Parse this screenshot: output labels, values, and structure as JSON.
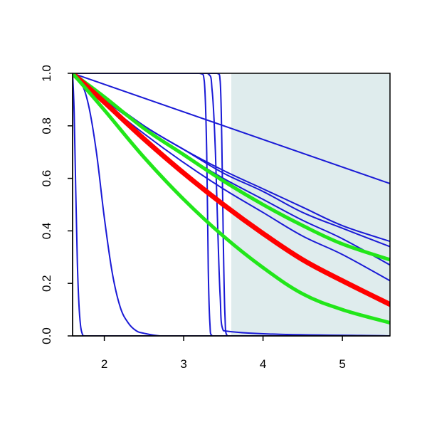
{
  "chart_data": {
    "type": "line",
    "title": "",
    "xlabel": "",
    "ylabel": "",
    "xlim": [
      1.6,
      5.6
    ],
    "ylim": [
      0.0,
      1.0
    ],
    "x_ticks": [
      "2",
      "3",
      "4",
      "5"
    ],
    "y_ticks": [
      "0.0",
      "0.2",
      "0.4",
      "0.6",
      "0.8",
      "1.0"
    ],
    "grid": false,
    "legend": "none",
    "shaded_region": {
      "x_from": 3.6,
      "x_to": 5.6,
      "color": "#dfeced"
    },
    "colors": {
      "blue": "#1a1ad6",
      "red": "#ff0000",
      "green": "#22e61a"
    },
    "series": [
      {
        "color": "blue",
        "width": 2,
        "x": [
          1.6,
          5.6
        ],
        "y": [
          1.0,
          0.58
        ]
      },
      {
        "color": "blue",
        "width": 2,
        "x": [
          1.6,
          2.0,
          2.5,
          3.0,
          3.5,
          4.0,
          4.5,
          5.0,
          5.6
        ],
        "y": [
          1.0,
          0.91,
          0.8,
          0.71,
          0.63,
          0.56,
          0.49,
          0.42,
          0.36
        ]
      },
      {
        "color": "blue",
        "width": 2,
        "x": [
          1.6,
          2.0,
          2.5,
          3.0,
          3.5,
          4.0,
          4.5,
          5.0,
          5.6
        ],
        "y": [
          1.0,
          0.91,
          0.8,
          0.71,
          0.62,
          0.55,
          0.47,
          0.41,
          0.34
        ]
      },
      {
        "color": "blue",
        "width": 2,
        "x": [
          1.6,
          2.0,
          2.5,
          3.0,
          3.5,
          4.0,
          4.5,
          5.0,
          5.6
        ],
        "y": [
          1.0,
          0.9,
          0.79,
          0.69,
          0.6,
          0.52,
          0.44,
          0.37,
          0.27
        ]
      },
      {
        "color": "blue",
        "width": 2,
        "x": [
          1.6,
          2.0,
          2.5,
          3.0,
          3.5,
          4.0,
          4.5,
          5.0,
          5.6
        ],
        "y": [
          1.0,
          0.89,
          0.77,
          0.66,
          0.56,
          0.47,
          0.38,
          0.31,
          0.21
        ]
      },
      {
        "color": "blue",
        "width": 2,
        "x": [
          1.6,
          1.62,
          1.64,
          1.66,
          1.68,
          1.7,
          1.72,
          1.75,
          5.6
        ],
        "y": [
          1.0,
          0.85,
          0.55,
          0.28,
          0.12,
          0.04,
          0.01,
          0.0,
          0.0
        ]
      },
      {
        "color": "blue",
        "width": 2,
        "x": [
          1.6,
          1.7,
          1.8,
          1.9,
          2.0,
          2.1,
          2.2,
          2.3,
          2.4,
          2.5,
          2.7,
          3.0,
          5.6
        ],
        "y": [
          1.0,
          0.97,
          0.88,
          0.7,
          0.45,
          0.24,
          0.11,
          0.05,
          0.02,
          0.01,
          0.0,
          0.0,
          0.0
        ]
      },
      {
        "color": "blue",
        "width": 2,
        "x": [
          1.6,
          3.2,
          3.26,
          3.29,
          3.31,
          3.33,
          3.36,
          5.6
        ],
        "y": [
          1.0,
          1.0,
          0.97,
          0.7,
          0.25,
          0.05,
          0.0,
          0.0
        ]
      },
      {
        "color": "blue",
        "width": 2,
        "x": [
          1.6,
          3.3,
          3.36,
          3.4,
          3.43,
          3.46,
          3.5,
          5.6
        ],
        "y": [
          1.0,
          1.0,
          0.93,
          0.7,
          0.4,
          0.15,
          0.02,
          0.0
        ]
      },
      {
        "color": "blue",
        "width": 2,
        "x": [
          1.6,
          3.42,
          3.46,
          3.48,
          3.5,
          3.52,
          3.55,
          5.6
        ],
        "y": [
          1.0,
          1.0,
          0.97,
          0.75,
          0.35,
          0.08,
          0.0,
          0.0
        ]
      },
      {
        "color": "green",
        "width": 5,
        "x": [
          1.6,
          2.0,
          2.5,
          3.0,
          3.5,
          4.0,
          4.5,
          5.0,
          5.6
        ],
        "y": [
          1.0,
          0.91,
          0.79,
          0.69,
          0.59,
          0.5,
          0.42,
          0.35,
          0.29
        ]
      },
      {
        "color": "red",
        "width": 7,
        "x": [
          1.6,
          2.0,
          2.5,
          3.0,
          3.5,
          4.0,
          4.5,
          5.0,
          5.6
        ],
        "y": [
          1.0,
          0.89,
          0.75,
          0.62,
          0.5,
          0.39,
          0.29,
          0.21,
          0.12
        ]
      },
      {
        "color": "green",
        "width": 5,
        "x": [
          1.6,
          2.0,
          2.5,
          3.0,
          3.5,
          4.0,
          4.5,
          5.0,
          5.6
        ],
        "y": [
          1.0,
          0.86,
          0.68,
          0.52,
          0.38,
          0.26,
          0.16,
          0.1,
          0.05
        ]
      }
    ]
  }
}
